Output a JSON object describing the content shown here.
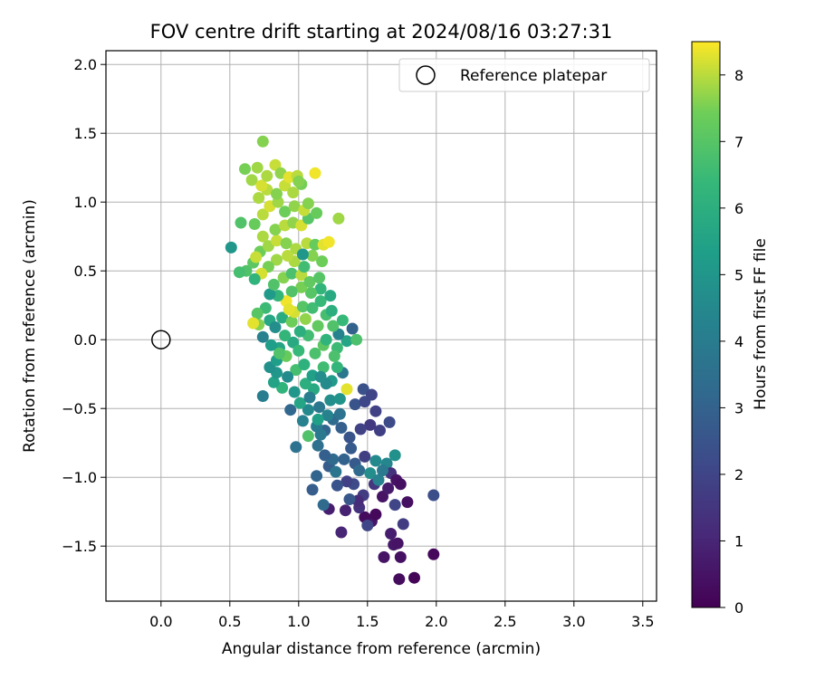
{
  "chart_data": {
    "type": "scatter",
    "title": "FOV centre drift starting at 2024/08/16 03:27:31",
    "xlabel": "Angular distance from reference (arcmin)",
    "ylabel": "Rotation from reference (arcmin)",
    "xlim": [
      -0.4,
      3.6
    ],
    "ylim": [
      -1.9,
      2.1
    ],
    "xticks": [
      0.0,
      0.5,
      1.0,
      1.5,
      2.0,
      2.5,
      3.0,
      3.5
    ],
    "xtick_labels": [
      "0.0",
      "0.5",
      "1.0",
      "1.5",
      "2.0",
      "2.5",
      "3.0",
      "3.5"
    ],
    "yticks": [
      -1.5,
      -1.0,
      -0.5,
      0.0,
      0.5,
      1.0,
      1.5,
      2.0
    ],
    "ytick_labels": [
      "−1.5",
      "−1.0",
      "−0.5",
      "0.0",
      "0.5",
      "1.0",
      "1.5",
      "2.0"
    ],
    "grid": true,
    "legend": {
      "placement": "top-right",
      "entries": [
        "Reference platepar"
      ]
    },
    "reference_point": {
      "x": 0.0,
      "y": 0.0
    },
    "colorbar": {
      "label": "Hours from first FF file",
      "range": [
        0,
        8.5
      ],
      "ticks": [
        0,
        1,
        2,
        3,
        4,
        5,
        6,
        7,
        8
      ],
      "colormap": "viridis"
    },
    "points": [
      [
        1.84,
        -1.73,
        0.1
      ],
      [
        1.73,
        -1.74,
        0.3
      ],
      [
        1.62,
        -1.58,
        0.5
      ],
      [
        1.74,
        -1.58,
        0.4
      ],
      [
        1.98,
        -1.56,
        0.2
      ],
      [
        1.69,
        -1.49,
        0.6
      ],
      [
        1.72,
        -1.48,
        0.5
      ],
      [
        1.67,
        -1.41,
        0.8
      ],
      [
        1.76,
        -1.34,
        1.7
      ],
      [
        1.53,
        -1.32,
        0.6
      ],
      [
        1.48,
        -1.29,
        0.3
      ],
      [
        1.56,
        -1.27,
        0.2
      ],
      [
        1.5,
        -1.35,
        2.0
      ],
      [
        1.34,
        -1.24,
        0.9
      ],
      [
        1.22,
        -1.23,
        0.8
      ],
      [
        1.31,
        -1.4,
        1.0
      ],
      [
        1.44,
        -1.22,
        1.4
      ],
      [
        1.7,
        -1.2,
        2.0
      ],
      [
        1.79,
        -1.18,
        0.4
      ],
      [
        1.98,
        -1.13,
        2.3
      ],
      [
        1.61,
        -1.14,
        0.5
      ],
      [
        1.65,
        -1.08,
        0.7
      ],
      [
        1.55,
        -1.05,
        1.5
      ],
      [
        1.47,
        -1.13,
        1.7
      ],
      [
        1.4,
        -1.05,
        2.2
      ],
      [
        1.35,
        -1.03,
        1.9
      ],
      [
        1.28,
        -1.06,
        2.5
      ],
      [
        1.18,
        -1.2,
        3.3
      ],
      [
        1.1,
        -1.09,
        2.8
      ],
      [
        1.13,
        -0.99,
        3.1
      ],
      [
        1.22,
        -0.92,
        2.8
      ],
      [
        1.25,
        -0.87,
        3.3
      ],
      [
        1.33,
        -0.87,
        3.0
      ],
      [
        1.41,
        -0.9,
        2.7
      ],
      [
        1.48,
        -0.85,
        1.8
      ],
      [
        1.56,
        -0.88,
        4.5
      ],
      [
        1.64,
        -0.9,
        4.4
      ],
      [
        1.67,
        -0.97,
        1.4
      ],
      [
        1.7,
        -0.84,
        4.8
      ],
      [
        1.71,
        -1.02,
        0.5
      ],
      [
        1.74,
        -1.05,
        0.4
      ],
      [
        1.59,
        -0.66,
        1.8
      ],
      [
        1.52,
        -0.62,
        1.6
      ],
      [
        1.45,
        -0.65,
        1.9
      ],
      [
        1.37,
        -0.71,
        2.5
      ],
      [
        1.31,
        -0.64,
        2.9
      ],
      [
        1.25,
        -0.58,
        3.3
      ],
      [
        1.19,
        -0.66,
        3.1
      ],
      [
        1.13,
        -0.63,
        4.0
      ],
      [
        1.07,
        -0.7,
        6.9
      ],
      [
        1.14,
        -0.77,
        3.5
      ],
      [
        0.98,
        -0.78,
        3.6
      ],
      [
        1.03,
        -0.59,
        4.2
      ],
      [
        1.07,
        -0.51,
        4.5
      ],
      [
        0.94,
        -0.51,
        3.2
      ],
      [
        1.01,
        -0.46,
        5.6
      ],
      [
        1.15,
        -0.49,
        3.8
      ],
      [
        1.23,
        -0.44,
        4.7
      ],
      [
        1.3,
        -0.43,
        4.9
      ],
      [
        1.35,
        -0.36,
        8.3
      ],
      [
        1.41,
        -0.47,
        2.5
      ],
      [
        1.48,
        -0.45,
        2.1
      ],
      [
        1.47,
        -0.36,
        2.4
      ],
      [
        1.53,
        -0.4,
        2.0
      ],
      [
        1.56,
        -0.52,
        1.9
      ],
      [
        1.66,
        -0.6,
        2.2
      ],
      [
        1.32,
        -0.24,
        3.8
      ],
      [
        1.24,
        -0.3,
        5.2
      ],
      [
        1.18,
        -0.2,
        6.6
      ],
      [
        1.28,
        -0.2,
        6.3
      ],
      [
        1.2,
        -0.32,
        4.6
      ],
      [
        1.11,
        -0.36,
        5.8
      ],
      [
        1.05,
        -0.32,
        6.0
      ],
      [
        0.97,
        -0.38,
        5.0
      ],
      [
        0.88,
        -0.35,
        6.2
      ],
      [
        0.82,
        -0.31,
        5.5
      ],
      [
        0.84,
        -0.24,
        5.0
      ],
      [
        0.74,
        -0.41,
        4.1
      ],
      [
        0.79,
        -0.2,
        4.8
      ],
      [
        0.84,
        -0.15,
        5.3
      ],
      [
        0.91,
        -0.12,
        7.3
      ],
      [
        0.98,
        -0.22,
        6.7
      ],
      [
        1.04,
        -0.18,
        6.1
      ],
      [
        1.12,
        -0.1,
        6.8
      ],
      [
        1.18,
        -0.04,
        7.1
      ],
      [
        1.28,
        -0.06,
        6.5
      ],
      [
        1.35,
        -0.01,
        5.6
      ],
      [
        1.42,
        0.0,
        6.8
      ],
      [
        1.29,
        0.04,
        4.3
      ],
      [
        1.39,
        0.08,
        3.0
      ],
      [
        1.32,
        0.14,
        6.4
      ],
      [
        1.25,
        0.1,
        6.9
      ],
      [
        1.2,
        0.18,
        6.7
      ],
      [
        1.14,
        0.1,
        7.2
      ],
      [
        1.07,
        0.03,
        6.6
      ],
      [
        1.01,
        0.06,
        6.0
      ],
      [
        0.96,
        -0.02,
        5.8
      ],
      [
        0.9,
        0.03,
        6.3
      ],
      [
        0.86,
        -0.06,
        5.6
      ],
      [
        0.8,
        -0.04,
        5.3
      ],
      [
        0.74,
        0.02,
        4.2
      ],
      [
        0.71,
        0.11,
        7.6
      ],
      [
        0.79,
        0.14,
        5.7
      ],
      [
        0.83,
        0.09,
        4.7
      ],
      [
        0.88,
        0.16,
        5.9
      ],
      [
        0.95,
        0.13,
        7.4
      ],
      [
        0.97,
        0.2,
        8.2
      ],
      [
        1.03,
        0.24,
        7.0
      ],
      [
        1.1,
        0.23,
        6.6
      ],
      [
        1.16,
        0.28,
        6.4
      ],
      [
        1.24,
        0.21,
        6.0
      ],
      [
        1.23,
        0.32,
        5.8
      ],
      [
        1.16,
        0.37,
        6.3
      ],
      [
        1.09,
        0.34,
        7.0
      ],
      [
        1.02,
        0.38,
        7.5
      ],
      [
        0.95,
        0.35,
        6.9
      ],
      [
        0.91,
        0.28,
        8.4
      ],
      [
        0.85,
        0.32,
        6.3
      ],
      [
        0.79,
        0.33,
        5.2
      ],
      [
        0.76,
        0.23,
        6.5
      ],
      [
        0.7,
        0.19,
        7.0
      ],
      [
        0.67,
        0.12,
        8.3
      ],
      [
        0.82,
        0.4,
        6.9
      ],
      [
        0.89,
        0.45,
        7.6
      ],
      [
        0.95,
        0.48,
        6.8
      ],
      [
        1.02,
        0.47,
        8.0
      ],
      [
        1.08,
        0.42,
        7.2
      ],
      [
        1.15,
        0.45,
        7.0
      ],
      [
        1.17,
        0.57,
        7.4
      ],
      [
        1.1,
        0.61,
        7.6
      ],
      [
        1.04,
        0.53,
        6.6
      ],
      [
        0.97,
        0.57,
        7.9
      ],
      [
        0.92,
        0.61,
        8.0
      ],
      [
        0.84,
        0.58,
        7.8
      ],
      [
        0.78,
        0.53,
        7.5
      ],
      [
        0.73,
        0.48,
        8.2
      ],
      [
        0.68,
        0.44,
        6.2
      ],
      [
        0.62,
        0.5,
        6.9
      ],
      [
        0.57,
        0.49,
        6.7
      ],
      [
        0.67,
        0.56,
        7.1
      ],
      [
        0.72,
        0.64,
        7.4
      ],
      [
        0.78,
        0.68,
        7.8
      ],
      [
        0.84,
        0.72,
        8.1
      ],
      [
        0.91,
        0.7,
        7.6
      ],
      [
        0.98,
        0.66,
        7.9
      ],
      [
        1.06,
        0.7,
        8.0
      ],
      [
        1.12,
        0.69,
        7.3
      ],
      [
        1.18,
        0.69,
        8.3
      ],
      [
        1.22,
        0.71,
        8.4
      ],
      [
        1.03,
        0.62,
        5.0
      ],
      [
        0.51,
        0.67,
        5.0
      ],
      [
        0.69,
        0.6,
        8.1
      ],
      [
        0.74,
        0.75,
        7.9
      ],
      [
        0.83,
        0.8,
        7.6
      ],
      [
        0.9,
        0.83,
        8.0
      ],
      [
        0.96,
        0.85,
        7.7
      ],
      [
        1.02,
        0.83,
        8.2
      ],
      [
        1.07,
        0.88,
        7.0
      ],
      [
        0.58,
        0.85,
        6.9
      ],
      [
        0.68,
        0.84,
        7.3
      ],
      [
        0.74,
        0.91,
        8.0
      ],
      [
        0.79,
        0.97,
        8.2
      ],
      [
        0.85,
        1.0,
        7.8
      ],
      [
        0.9,
        0.93,
        7.4
      ],
      [
        0.97,
        0.97,
        7.7
      ],
      [
        1.04,
        0.94,
        8.1
      ],
      [
        1.07,
        0.99,
        7.6
      ],
      [
        1.13,
        0.92,
        7.3
      ],
      [
        1.29,
        0.88,
        7.8
      ],
      [
        0.71,
        1.03,
        7.9
      ],
      [
        0.77,
        1.09,
        8.0
      ],
      [
        0.84,
        1.06,
        7.6
      ],
      [
        0.9,
        1.12,
        8.1
      ],
      [
        0.96,
        1.07,
        7.9
      ],
      [
        1.02,
        1.13,
        7.5
      ],
      [
        0.66,
        1.16,
        7.8
      ],
      [
        0.73,
        1.12,
        8.2
      ],
      [
        0.77,
        1.19,
        7.9
      ],
      [
        0.83,
        1.27,
        8.1
      ],
      [
        0.87,
        1.21,
        7.7
      ],
      [
        0.93,
        1.18,
        8.3
      ],
      [
        0.99,
        1.19,
        8.0
      ],
      [
        1.0,
        1.15,
        7.6
      ],
      [
        0.61,
        1.24,
        7.5
      ],
      [
        0.7,
        1.25,
        7.8
      ],
      [
        0.74,
        1.44,
        7.6
      ],
      [
        1.12,
        1.21,
        8.4
      ],
      [
        0.93,
        0.22,
        8.3
      ],
      [
        1.05,
        0.15,
        7.7
      ],
      [
        1.2,
        0.0,
        6.2
      ],
      [
        1.26,
        -0.12,
        6.8
      ],
      [
        1.1,
        -0.26,
        5.4
      ],
      [
        1.0,
        -0.08,
        6.4
      ],
      [
        0.92,
        -0.27,
        4.6
      ],
      [
        0.86,
        -0.1,
        6.9
      ],
      [
        1.3,
        -0.54,
        3.6
      ],
      [
        1.38,
        -0.79,
        2.7
      ],
      [
        1.44,
        -0.95,
        3.3
      ],
      [
        1.52,
        -0.97,
        4.7
      ],
      [
        1.58,
        -1.02,
        4.2
      ],
      [
        1.61,
        -0.95,
        3.9
      ],
      [
        1.43,
        -1.17,
        1.2
      ],
      [
        1.37,
        -1.16,
        2.6
      ],
      [
        1.27,
        -0.96,
        3.7
      ],
      [
        1.19,
        -0.84,
        2.9
      ],
      [
        1.16,
        -0.69,
        3.9
      ],
      [
        1.21,
        -0.55,
        4.3
      ],
      [
        1.14,
        -0.58,
        5.4
      ],
      [
        1.08,
        -0.42,
        4.1
      ],
      [
        1.16,
        -0.27,
        4.7
      ]
    ]
  }
}
